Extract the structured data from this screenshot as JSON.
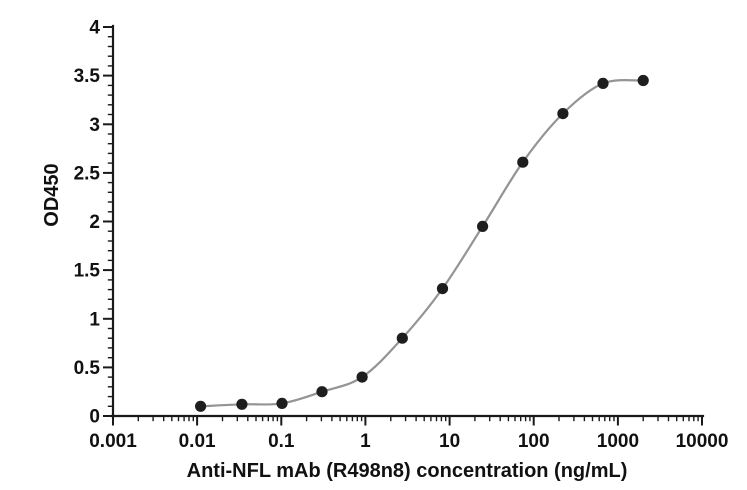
{
  "chart_data": {
    "type": "line",
    "subtype": "scatter-points-with-smooth-fit-curve",
    "title": "",
    "xlabel": "Anti-NFL mAb (R498n8) concentration (ng/mL)",
    "ylabel": "OD450",
    "x_scale": "log10",
    "xlim": [
      0.001,
      10000
    ],
    "ylim": [
      0,
      4
    ],
    "x_major_ticks": [
      0.001,
      0.01,
      0.1,
      1,
      10,
      100,
      1000,
      10000
    ],
    "x_tick_labels": [
      "0.001",
      "0.01",
      "0.1",
      "1",
      "10",
      "100",
      "1000",
      "10000"
    ],
    "y_major_tick_step": 0.5,
    "y_minor_tick_step": 0.1,
    "y_tick_labels": [
      "0",
      "0.5",
      "1",
      "1.5",
      "2",
      "2.5",
      "3",
      "3.5",
      "4"
    ],
    "grid": false,
    "legend_position": "none",
    "series": [
      {
        "name": "Anti-NFL mAb (R498n8)",
        "x": [
          0.011,
          0.034,
          0.102,
          0.305,
          0.914,
          2.74,
          8.23,
          24.7,
          74.1,
          222.2,
          666.7,
          2000
        ],
        "y": [
          0.1,
          0.12,
          0.13,
          0.25,
          0.4,
          0.8,
          1.31,
          1.95,
          2.61,
          3.11,
          3.42,
          3.45
        ],
        "marker": "filled-circle",
        "marker_color": "#1e1e1e",
        "line_color": "#949494"
      }
    ],
    "colors": {
      "axis": "#1a1a1a",
      "text": "#111111",
      "background": "#ffffff"
    }
  }
}
